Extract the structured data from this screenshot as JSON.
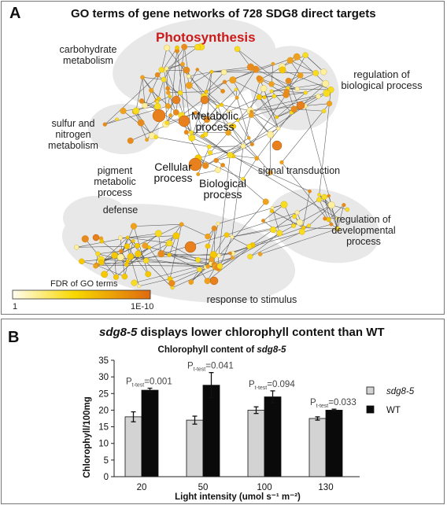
{
  "panel_a": {
    "letter": "A",
    "title": "GO terms of gene networks of 728 SDG8 direct targets",
    "highlight": "Photosynthesis",
    "labels": {
      "carbohydrate": "carbohydrate\nmetabolism",
      "regulation_bio": "regulation of\nbiological process",
      "sulfur": "sulfur and\nnitrogen\nmetabolism",
      "metabolic": "Metabolic\nprocess",
      "pigment": "pigment\nmetabolic\nprocess",
      "cellular": "Cellular\nprocess",
      "biological": "Biological\nprocess",
      "signal": "signal transduction",
      "defense": "defense",
      "regulation_dev": "regulation of\ndevelopmental\nprocess",
      "response": "response to stimulus"
    },
    "legend": {
      "title": "FDR of GO terms",
      "min": "1",
      "max": "1E-10"
    },
    "colors": {
      "low": "#fff8c8",
      "mid": "#f5c800",
      "high": "#e07018",
      "blob": "#e8e8e8"
    }
  },
  "panel_b": {
    "letter": "B",
    "title_italic": "sdg8-5",
    "title_rest": " displays lower chlorophyll content than WT",
    "chart_data": {
      "type": "bar",
      "title_prefix": "Chlorophyll content of ",
      "title_italic": "sdg8-5",
      "xlabel": "Light intensity (umol s⁻¹ m⁻²)",
      "ylabel": "Chlorophyll/100mg",
      "categories": [
        "20",
        "50",
        "100",
        "130"
      ],
      "ylim": [
        0,
        35
      ],
      "yticks": [
        "0",
        "5",
        "10",
        "15",
        "20",
        "25",
        "30",
        "35"
      ],
      "series": [
        {
          "name": "sdg8-5",
          "values": [
            18,
            17,
            20,
            17.5
          ],
          "errors": [
            1.5,
            1.2,
            1.0,
            0.5
          ],
          "color": "#d3d3d3"
        },
        {
          "name": "WT",
          "values": [
            26,
            27.5,
            24,
            20
          ],
          "errors": [
            0.6,
            3.8,
            1.8,
            0.3
          ],
          "color": "#0a0a0a"
        }
      ],
      "pvalue_prefix": "P",
      "pvalue_sub": "t-test",
      "pvalues": [
        "=0.001",
        "=0.041",
        "=0.094",
        "=0.033"
      ]
    }
  }
}
